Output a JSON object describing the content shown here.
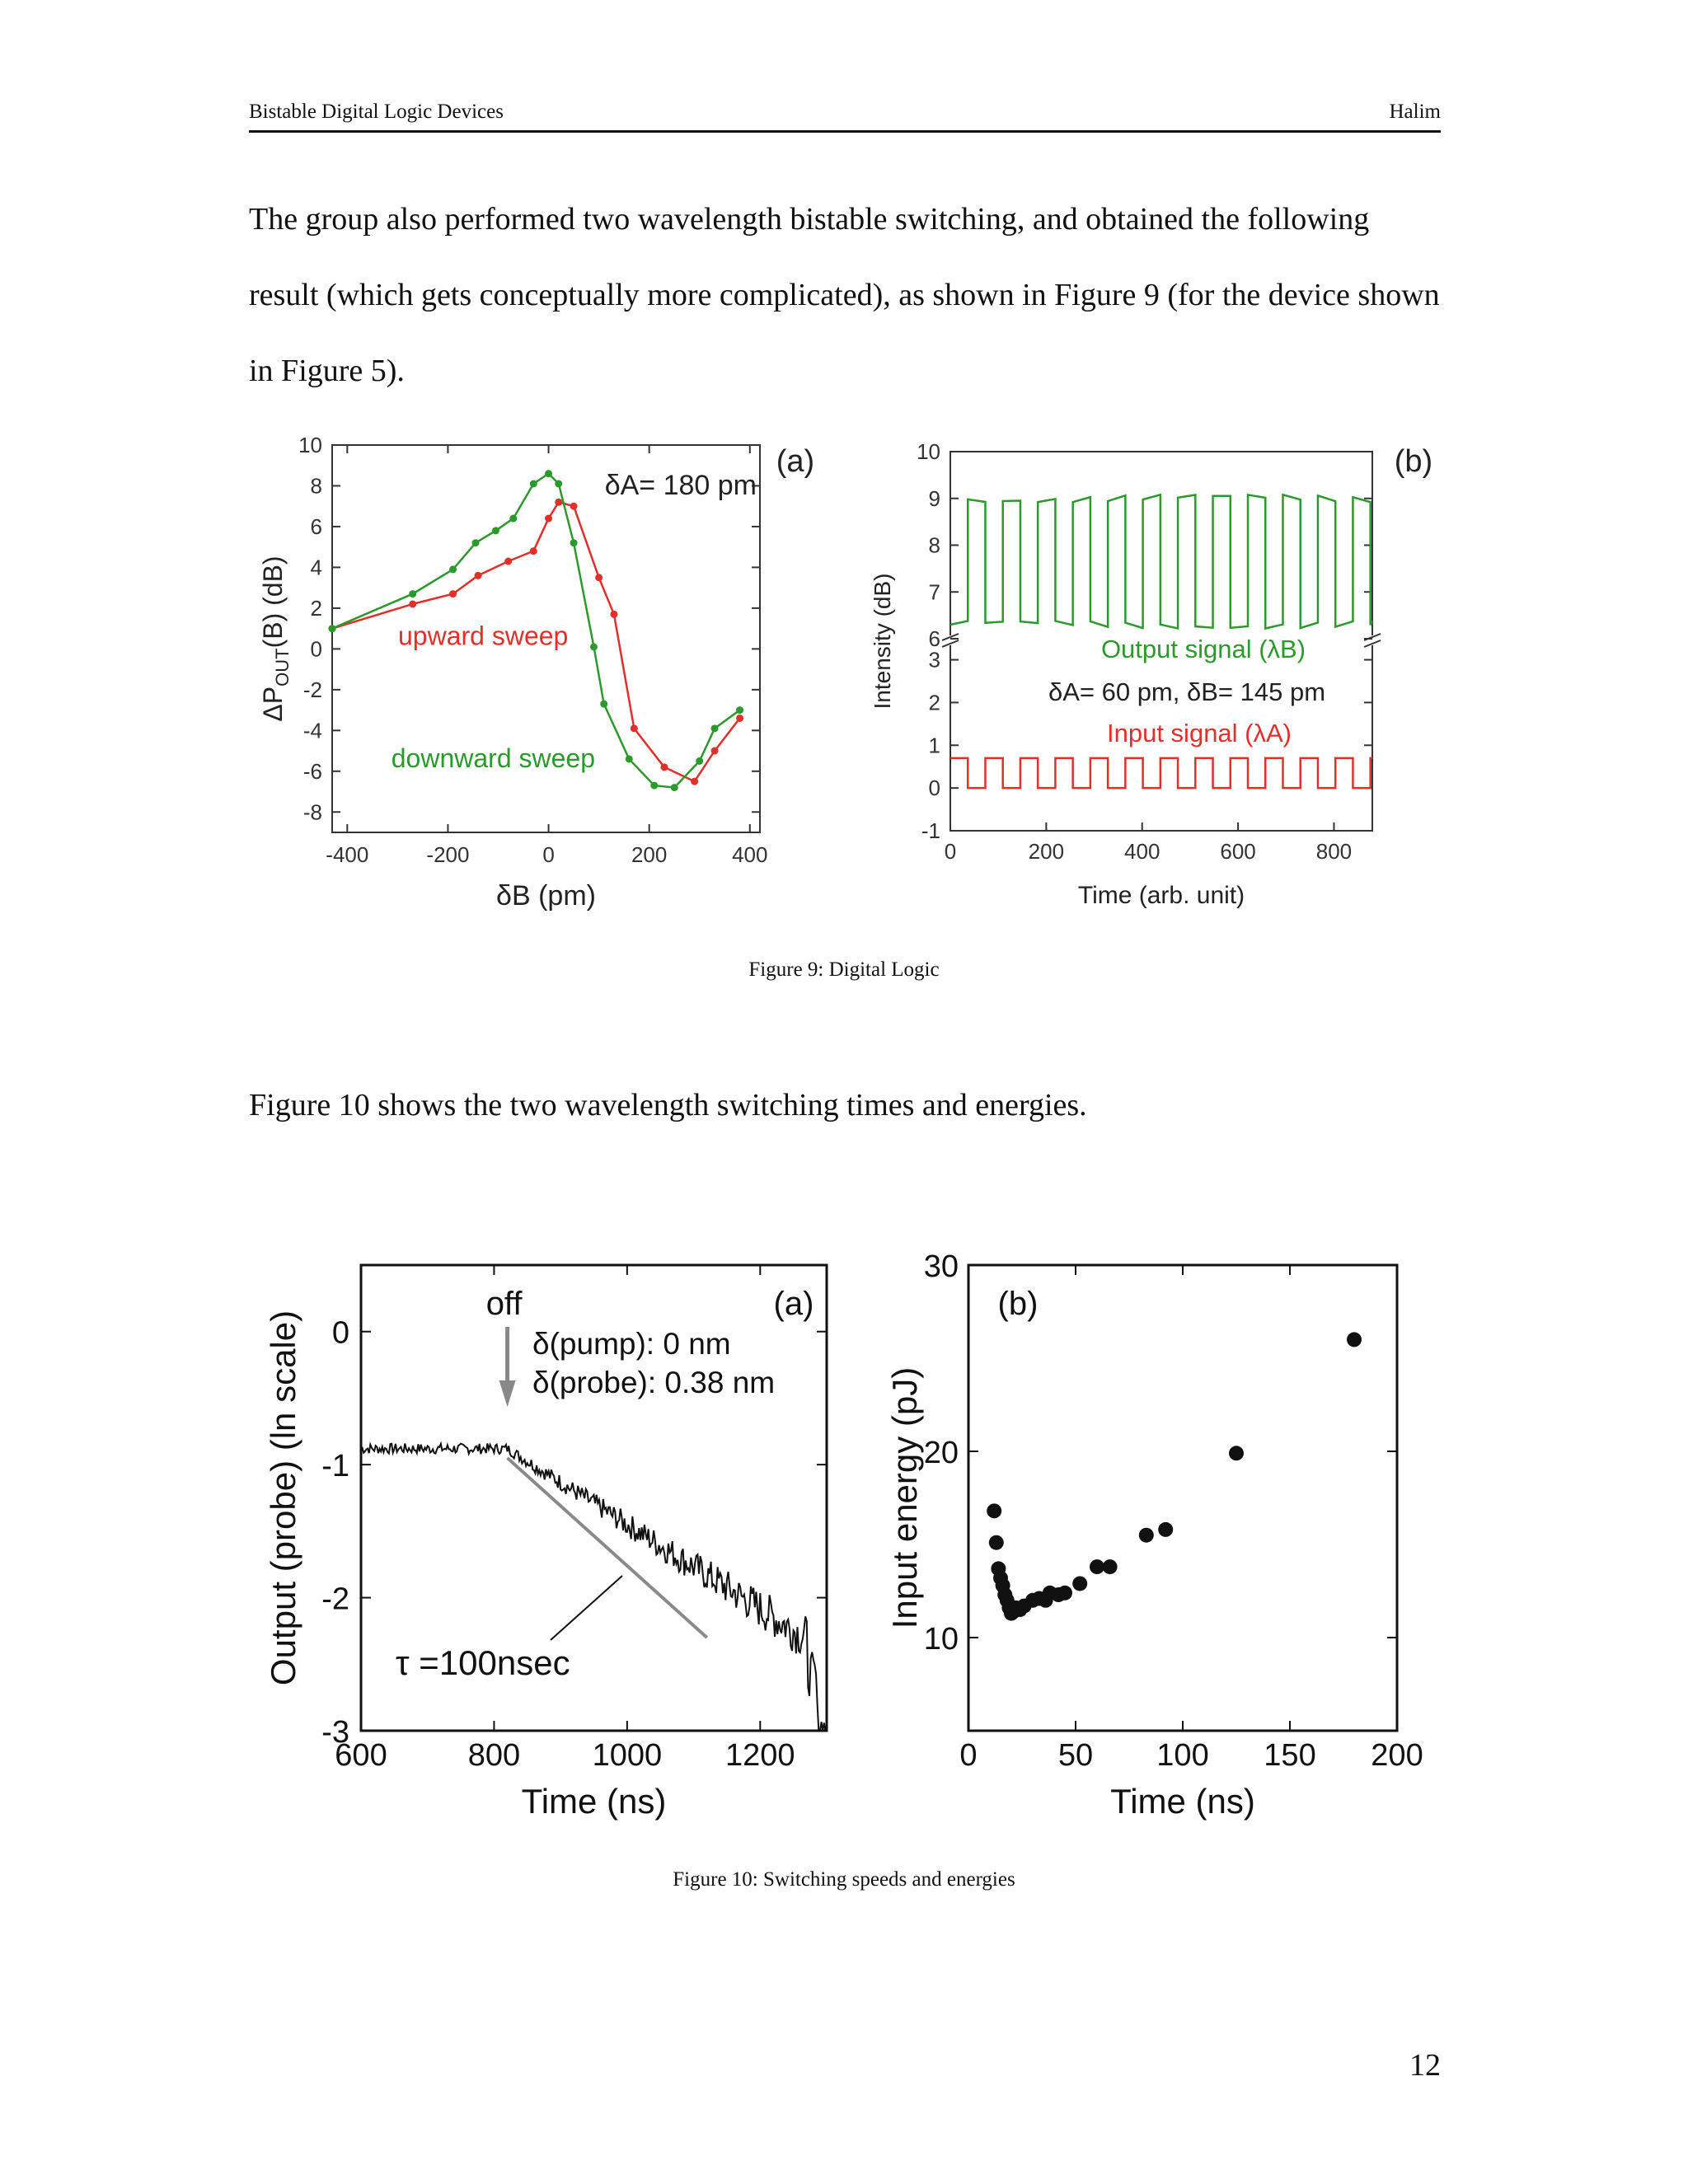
{
  "header": {
    "left": "Bistable Digital Logic Devices",
    "right": "Halim"
  },
  "paragraph1": "The group also performed two wavelength bistable switching, and obtained the following result (which gets conceptually more complicated), as shown in Figure 9 (for the device shown in Figure 5).",
  "paragraph2": "Figure 10 shows the two wavelength switching times and energies.",
  "fig9_caption": "Figure 9: Digital Logic",
  "fig10_caption": "Figure 10: Switching speeds and energies",
  "page_number": "12",
  "colors": {
    "green": "#2a9a2a",
    "red": "#e0302a",
    "black": "#111111",
    "gray": "#8a8a8a"
  },
  "chart_data": [
    {
      "id": "fig9a",
      "type": "line",
      "panel_label": "(a)",
      "xlabel": "δB (pm)",
      "ylabel": "ΔP",
      "ylabel_sub": "OUT",
      "ylabel_tail": "(B)   (dB)",
      "xlim": [
        -430,
        420
      ],
      "ylim": [
        -9,
        10
      ],
      "xticks": [
        -400,
        -200,
        0,
        200,
        400
      ],
      "yticks": [
        -8,
        -6,
        -4,
        -2,
        0,
        2,
        4,
        6,
        8,
        10
      ],
      "annotation": "δA= 180 pm",
      "series": [
        {
          "name": "upward sweep",
          "color": "#e0302a",
          "label_pos": [
            -130,
            0.2
          ],
          "x": [
            -430,
            -270,
            -190,
            -140,
            -80,
            -30,
            0,
            20,
            50,
            100,
            130,
            170,
            230,
            290,
            330,
            380
          ],
          "y": [
            1.0,
            2.2,
            2.7,
            3.6,
            4.3,
            4.8,
            6.4,
            7.2,
            7.0,
            3.5,
            1.7,
            -3.9,
            -5.8,
            -6.5,
            -5.0,
            -3.4
          ]
        },
        {
          "name": "downward sweep",
          "color": "#2a9a2a",
          "label_pos": [
            -110,
            -5.8
          ],
          "x": [
            -430,
            -270,
            -190,
            -145,
            -105,
            -70,
            -30,
            0,
            20,
            50,
            90,
            110,
            160,
            210,
            250,
            300,
            330,
            380
          ],
          "y": [
            1.0,
            2.7,
            3.9,
            5.2,
            5.8,
            6.4,
            8.1,
            8.6,
            8.1,
            5.2,
            0.1,
            -2.7,
            -5.4,
            -6.7,
            -6.8,
            -5.5,
            -3.9,
            -3.0
          ]
        }
      ]
    },
    {
      "id": "fig9b",
      "type": "line",
      "panel_label": "(b)",
      "xlabel": "Time (arb. unit)",
      "ylabel": "Intensity (dB)",
      "xlim": [
        0,
        880
      ],
      "xticks": [
        0,
        200,
        400,
        600,
        800
      ],
      "yticks_lower": [
        -1,
        0,
        1,
        2,
        3
      ],
      "yticks_upper": [
        6,
        7,
        8,
        9,
        10
      ],
      "series": [
        {
          "name": "Output signal (λB)",
          "color": "#2a9a2a",
          "high": 9.0,
          "low": 6.3,
          "period": 73,
          "duty": 0.5,
          "start_high": false
        },
        {
          "name": "Input signal (λA)",
          "color": "#e0302a",
          "high": 0.7,
          "low": 0.0,
          "period": 73,
          "duty": 0.5,
          "start_high": true
        }
      ],
      "annotation": "δA= 60 pm, δB= 145 pm"
    },
    {
      "id": "fig10a",
      "type": "line",
      "panel_label": "(a)",
      "xlabel": "Time (ns)",
      "ylabel": "Output (probe) (ln scale)",
      "xlim": [
        600,
        1300
      ],
      "ylim": [
        -3,
        0.5
      ],
      "xticks": [
        600,
        800,
        1000,
        1200
      ],
      "yticks": [
        0,
        -1,
        -2,
        -3
      ],
      "off_label": "off",
      "off_x": 820,
      "annotations": [
        "δ(pump): 0 nm",
        "δ(probe): 0.38 nm"
      ],
      "tau_label": "τ =100nsec",
      "fit_line": {
        "x": [
          820,
          1120
        ],
        "y": [
          -0.95,
          -2.3
        ],
        "color": "#8a8a8a"
      },
      "trace": {
        "plateau": -0.88,
        "plateau_end": 820,
        "decay_end_value": -2.4,
        "noise_early": 0.04,
        "noise_late": 0.18
      }
    },
    {
      "id": "fig10b",
      "type": "scatter",
      "panel_label": "(b)",
      "xlabel": "Time (ns)",
      "ylabel": "Input energy (pJ)",
      "xlim": [
        0,
        200
      ],
      "ylim": [
        5,
        30
      ],
      "xticks": [
        0,
        50,
        100,
        150,
        200
      ],
      "yticks": [
        10,
        20,
        30
      ],
      "x": [
        12,
        13,
        14,
        15,
        16,
        17,
        18,
        19,
        20,
        21,
        22,
        24,
        26,
        30,
        33,
        36,
        38,
        42,
        45,
        52,
        60,
        66,
        83,
        92,
        125,
        180
      ],
      "y": [
        16.8,
        15.1,
        13.7,
        13.2,
        12.8,
        12.3,
        12.0,
        11.6,
        11.3,
        11.4,
        11.6,
        11.5,
        11.7,
        12.0,
        12.1,
        12.0,
        12.4,
        12.3,
        12.4,
        12.9,
        13.8,
        13.8,
        15.5,
        15.8,
        19.9,
        26.0
      ]
    }
  ]
}
